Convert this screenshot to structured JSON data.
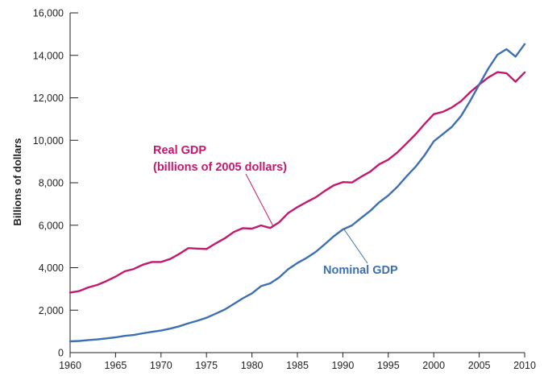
{
  "chart_data": {
    "type": "line",
    "title": "",
    "xlabel": "",
    "ylabel": "Billions of dollars",
    "xlim": [
      1960,
      2010
    ],
    "ylim": [
      0,
      16000
    ],
    "x_ticks": [
      1960,
      1965,
      1970,
      1975,
      1980,
      1985,
      1990,
      1995,
      2000,
      2005,
      2010
    ],
    "x_tick_labels": [
      "1960",
      "1965",
      "1970",
      "1975",
      "1980",
      "1985",
      "1990",
      "1995",
      "2000",
      "2005",
      "2010"
    ],
    "y_ticks": [
      0,
      2000,
      4000,
      6000,
      8000,
      10000,
      12000,
      14000,
      16000
    ],
    "y_tick_labels": [
      "0",
      "2,000",
      "4,000",
      "6,000",
      "8,000",
      "10,000",
      "12,000",
      "14,000",
      "16,000"
    ],
    "grid": false,
    "x": [
      1960,
      1961,
      1962,
      1963,
      1964,
      1965,
      1966,
      1967,
      1968,
      1969,
      1970,
      1971,
      1972,
      1973,
      1974,
      1975,
      1976,
      1977,
      1978,
      1979,
      1980,
      1981,
      1982,
      1983,
      1984,
      1985,
      1986,
      1987,
      1988,
      1989,
      1990,
      1991,
      1992,
      1993,
      1994,
      1995,
      1996,
      1997,
      1998,
      1999,
      2000,
      2001,
      2002,
      2003,
      2004,
      2005,
      2006,
      2007,
      2008,
      2009,
      2010
    ],
    "series": [
      {
        "key": "real",
        "color": "#c4186e",
        "values": [
          2830,
          2900,
          3070,
          3190,
          3370,
          3580,
          3830,
          3940,
          4140,
          4270,
          4270,
          4410,
          4650,
          4920,
          4900,
          4880,
          5140,
          5380,
          5680,
          5860,
          5840,
          5990,
          5870,
          6140,
          6580,
          6850,
          7090,
          7310,
          7610,
          7880,
          8030,
          8010,
          8280,
          8520,
          8870,
          9090,
          9430,
          9850,
          10280,
          10770,
          11230,
          11340,
          11550,
          11840,
          12260,
          12620,
          12960,
          13210,
          13160,
          12760,
          13200
        ]
      },
      {
        "key": "nominal",
        "color": "#3d6fb3",
        "values": [
          530,
          550,
          590,
          620,
          670,
          720,
          790,
          830,
          910,
          980,
          1040,
          1130,
          1240,
          1380,
          1500,
          1640,
          1830,
          2030,
          2290,
          2560,
          2790,
          3130,
          3260,
          3540,
          3930,
          4220,
          4460,
          4740,
          5100,
          5480,
          5800,
          5990,
          6340,
          6670,
          7080,
          7400,
          7810,
          8300,
          8750,
          9300,
          9950,
          10290,
          10640,
          11140,
          11850,
          12620,
          13380,
          14030,
          14290,
          13940,
          14530
        ]
      }
    ],
    "annotations": {
      "real_line1": "Real GDP",
      "real_line2": "(billions of 2005 dollars)",
      "nominal": "Nominal GDP"
    }
  }
}
